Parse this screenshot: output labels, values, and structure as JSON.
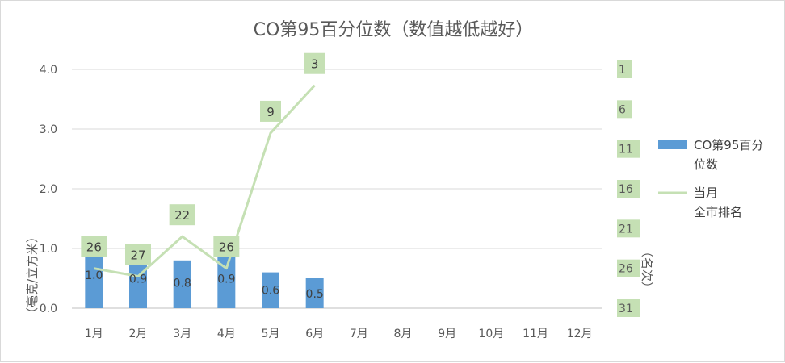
{
  "chart_data": {
    "type": "bar",
    "title": "CO第95百分位数（数值越低越好）",
    "categories": [
      "1月",
      "2月",
      "3月",
      "4月",
      "5月",
      "6月",
      "7月",
      "8月",
      "9月",
      "10月",
      "11月",
      "12月"
    ],
    "ylabel": "（毫克/立方米）",
    "y2label": "（名次）",
    "ylim": [
      0,
      4
    ],
    "yticks": [
      "0.0",
      "1.0",
      "2.0",
      "3.0",
      "4.0"
    ],
    "y2lim": [
      31,
      1
    ],
    "y2ticks": [
      "1",
      "6",
      "11",
      "16",
      "21",
      "26",
      "31"
    ],
    "grid": true,
    "legend_position": "right",
    "series": [
      {
        "name": "CO第95百分位数",
        "type": "bar",
        "color": "#5b9bd5",
        "values": [
          1.0,
          0.9,
          0.8,
          0.9,
          0.6,
          0.5,
          null,
          null,
          null,
          null,
          null,
          null
        ],
        "labels": [
          "1.0",
          "0.9",
          "0.8",
          "0.9",
          "0.6",
          "0.5"
        ]
      },
      {
        "name": "当月全市排名",
        "type": "line",
        "axis": "secondary",
        "color": "#c5e0b4",
        "values": [
          26,
          27,
          22,
          26,
          9,
          3,
          null,
          null,
          null,
          null,
          null,
          null
        ],
        "labels": [
          "26",
          "27",
          "22",
          "26",
          "9",
          "3"
        ]
      }
    ],
    "legend": {
      "bar_line1": "CO第95百分",
      "bar_line2": "位数",
      "line_line1": "当月",
      "line_line2": "全市排名"
    }
  }
}
